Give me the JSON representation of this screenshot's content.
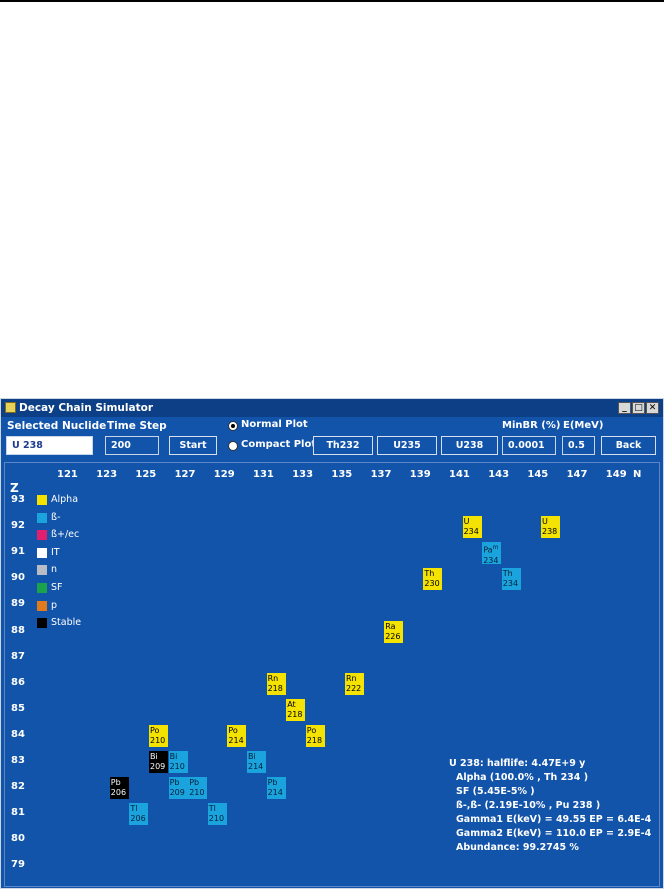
{
  "window": {
    "title": "Decay Chain Simulator"
  },
  "toolbar": {
    "selected_nuclide_label": "Selected Nuclide",
    "selected_nuclide_value": "U 238",
    "time_step_label": "Time Step",
    "time_step_value": "200",
    "start_label": "Start",
    "normal_plot_label": "Normal Plot",
    "compact_plot_label": "Compact Plot",
    "preset_buttons": [
      "Th232",
      "U235",
      "U238"
    ],
    "minbr_label": "MinBR (%)",
    "minbr_value": "0.0001",
    "emev_label": "E(MeV)",
    "emev_value": "0.5",
    "back_label": "Back"
  },
  "colors": {
    "alpha": "#f4e200",
    "beta_minus": "#1aa3dd",
    "beta_plus_ec": "#e0206e",
    "it": "#ffffff",
    "n": "#b8bcc4",
    "sf": "#1aa34a",
    "p": "#e07a1a",
    "stable": "#000000",
    "background": "#1254aa"
  },
  "axes": {
    "z_label": "Z",
    "n_label": "N",
    "n_ticks": [
      "121",
      "123",
      "125",
      "127",
      "129",
      "131",
      "133",
      "135",
      "137",
      "139",
      "141",
      "143",
      "145",
      "147",
      "149"
    ],
    "z_ticks": [
      "93",
      "92",
      "91",
      "90",
      "89",
      "88",
      "87",
      "86",
      "85",
      "84",
      "83",
      "82",
      "81",
      "80",
      "79"
    ]
  },
  "legend": [
    {
      "label": "Alpha",
      "color": "#f4e200"
    },
    {
      "label": "ß-",
      "color": "#1aa3dd"
    },
    {
      "label": "ß+/ec",
      "color": "#e0206e"
    },
    {
      "label": "IT",
      "color": "#ffffff"
    },
    {
      "label": "n",
      "color": "#b8bcc4"
    },
    {
      "label": "SF",
      "color": "#1aa34a"
    },
    {
      "label": "p",
      "color": "#e07a1a"
    },
    {
      "label": "Stable",
      "color": "#000000"
    }
  ],
  "nuclides": [
    {
      "sym": "U",
      "mass": "234",
      "z": 92,
      "n": 142,
      "mode": "alpha"
    },
    {
      "sym": "U",
      "mass": "238",
      "z": 92,
      "n": 146,
      "mode": "alpha"
    },
    {
      "sym": "Pa",
      "mass": "234",
      "z": 91,
      "n": 143,
      "mode": "beta",
      "flag": "m"
    },
    {
      "sym": "Th",
      "mass": "230",
      "z": 90,
      "n": 140,
      "mode": "alpha"
    },
    {
      "sym": "Th",
      "mass": "234",
      "z": 90,
      "n": 144,
      "mode": "beta"
    },
    {
      "sym": "Ra",
      "mass": "226",
      "z": 88,
      "n": 138,
      "mode": "alpha"
    },
    {
      "sym": "Rn",
      "mass": "218",
      "z": 86,
      "n": 132,
      "mode": "alpha"
    },
    {
      "sym": "Rn",
      "mass": "222",
      "z": 86,
      "n": 136,
      "mode": "alpha"
    },
    {
      "sym": "At",
      "mass": "218",
      "z": 85,
      "n": 133,
      "mode": "alpha"
    },
    {
      "sym": "Po",
      "mass": "210",
      "z": 84,
      "n": 126,
      "mode": "alpha"
    },
    {
      "sym": "Po",
      "mass": "214",
      "z": 84,
      "n": 130,
      "mode": "alpha"
    },
    {
      "sym": "Po",
      "mass": "218",
      "z": 84,
      "n": 134,
      "mode": "alpha"
    },
    {
      "sym": "Bi",
      "mass": "209",
      "z": 83,
      "n": 126,
      "mode": "stable"
    },
    {
      "sym": "Bi",
      "mass": "210",
      "z": 83,
      "n": 127,
      "mode": "beta"
    },
    {
      "sym": "Bi",
      "mass": "214",
      "z": 83,
      "n": 131,
      "mode": "beta"
    },
    {
      "sym": "Pb",
      "mass": "206",
      "z": 82,
      "n": 124,
      "mode": "stable"
    },
    {
      "sym": "Pb",
      "mass": "209",
      "z": 82,
      "n": 127,
      "mode": "beta"
    },
    {
      "sym": "Pb",
      "mass": "210",
      "z": 82,
      "n": 128,
      "mode": "beta"
    },
    {
      "sym": "Pb",
      "mass": "214",
      "z": 82,
      "n": 132,
      "mode": "beta"
    },
    {
      "sym": "Tl",
      "mass": "206",
      "z": 81,
      "n": 125,
      "mode": "beta"
    },
    {
      "sym": "Tl",
      "mass": "210",
      "z": 81,
      "n": 129,
      "mode": "beta"
    }
  ],
  "info": {
    "line1": "U 238: halflife: 4.47E+9 y",
    "line2": "Alpha (100.0% , Th 234 )",
    "line3": "SF (5.45E-5% )",
    "line4": "ß-,ß- (2.19E-10% , Pu 238 )",
    "line5": "Gamma1 E(keV) = 49.55 EP = 6.4E-4",
    "line6": "Gamma2 E(keV) = 110.0 EP = 2.9E-4",
    "line7": "Abundance: 99.2745 %"
  }
}
